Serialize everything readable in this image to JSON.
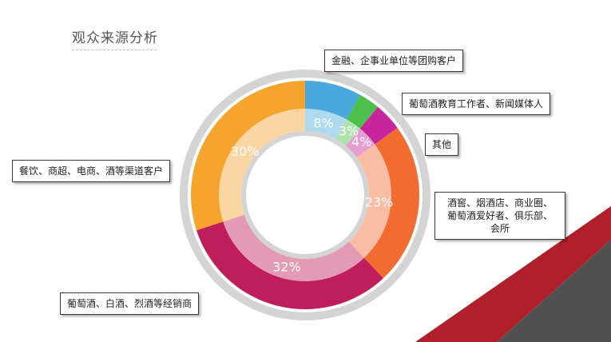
{
  "page": {
    "title": "观众来源分析"
  },
  "chart_data": {
    "type": "pie",
    "style": "donut",
    "start_angle_deg": 0,
    "direction": "clockwise",
    "slices": [
      {
        "label": "金融、企事业单位等团购客户",
        "value": 8,
        "value_label": "8%",
        "color": "#4aa9dc"
      },
      {
        "label": "葡萄酒教育工作者、新闻媒体人",
        "value": 3,
        "value_label": "3%",
        "color": "#4cbf4c"
      },
      {
        "label": "其他",
        "value": 4,
        "value_label": "4%",
        "color": "#c7269a"
      },
      {
        "label": "酒窖、烟酒店、商业圈、葡萄酒爱好者、俱乐部、会所",
        "label_lines": [
          "酒窖、烟酒店、商业圈、",
          "葡萄酒爱好者、俱乐部、",
          "会所"
        ],
        "value": 23,
        "value_label": "23%",
        "color": "#f26b30"
      },
      {
        "label": "葡萄酒、白酒、烈酒等经销商",
        "value": 32,
        "value_label": "32%",
        "color": "#c01e5a"
      },
      {
        "label": "餐饮、商超、电商、酒等渠道客户",
        "value": 30,
        "value_label": "30%",
        "color": "#f5a52e"
      }
    ],
    "legend": "callout boxes",
    "colors": {
      "outer_ring": "#d4d4d4",
      "corner_red": "#b0202a",
      "corner_gray": "#505050"
    }
  }
}
